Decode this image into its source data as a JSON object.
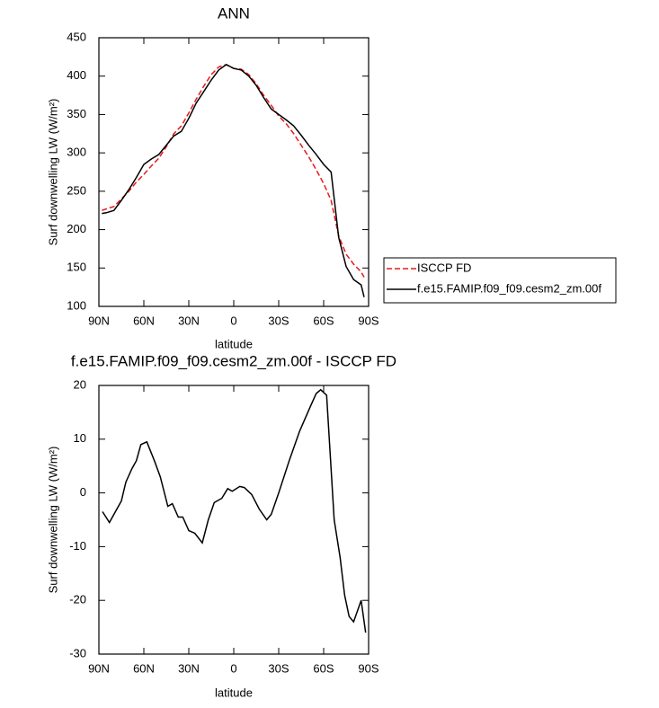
{
  "chart_data": [
    {
      "type": "line",
      "title": "ANN",
      "xlabel": "latitude",
      "ylabel": "Surf downwelling LW (W/m²)",
      "xlim": [
        90,
        -90
      ],
      "xticks": [
        {
          "value": 90,
          "label": "90N"
        },
        {
          "value": 60,
          "label": "60N"
        },
        {
          "value": 30,
          "label": "30N"
        },
        0,
        {
          "value": -30,
          "label": "30S"
        },
        {
          "value": -60,
          "label": "60S"
        },
        {
          "value": -90,
          "label": "90S"
        }
      ],
      "ylim": [
        100,
        450
      ],
      "yticks": [
        100,
        150,
        200,
        250,
        300,
        350,
        400,
        450
      ],
      "x": [
        88,
        85,
        80,
        75,
        70,
        65,
        60,
        55,
        50,
        45,
        40,
        35,
        30,
        25,
        20,
        15,
        10,
        5,
        0,
        -5,
        -10,
        -15,
        -20,
        -25,
        -30,
        -35,
        -40,
        -45,
        -50,
        -55,
        -60,
        -65,
        -70,
        -75,
        -80,
        -85,
        -87
      ],
      "series": [
        {
          "name": "ISCCP FD",
          "color": "#e8191b",
          "dash": true,
          "values": [
            225,
            227,
            230,
            240,
            250,
            262,
            272,
            283,
            293,
            308,
            325,
            335,
            352,
            370,
            387,
            402,
            412,
            415,
            410,
            409,
            402,
            390,
            375,
            362,
            348,
            338,
            325,
            310,
            295,
            278,
            260,
            238,
            192,
            168,
            155,
            145,
            138
          ]
        },
        {
          "name": "f.e15.FAMIP.f09_f09.cesm2_zm.00f",
          "color": "#000000",
          "dash": false,
          "values": [
            221,
            222,
            225,
            238,
            252,
            268,
            285,
            292,
            298,
            310,
            322,
            328,
            345,
            365,
            380,
            395,
            408,
            415,
            410,
            408,
            400,
            388,
            372,
            357,
            350,
            343,
            335,
            323,
            310,
            298,
            285,
            275,
            190,
            152,
            135,
            128,
            112
          ]
        }
      ],
      "legend": "right"
    },
    {
      "type": "line",
      "title": "f.e15.FAMIP.f09_f09.cesm2_zm.00f - ISCCP FD",
      "xlabel": "latitude",
      "ylabel": "Surf downwelling LW (W/m²)",
      "xlim": [
        90,
        -90
      ],
      "xticks": [
        {
          "value": 90,
          "label": "90N"
        },
        {
          "value": 60,
          "label": "60N"
        },
        {
          "value": 30,
          "label": "30N"
        },
        0,
        {
          "value": -30,
          "label": "30S"
        },
        {
          "value": -60,
          "label": "60S"
        },
        {
          "value": -90,
          "label": "90S"
        }
      ],
      "ylim": [
        -30,
        20
      ],
      "yticks": [
        -30,
        -20,
        -10,
        0,
        10,
        20
      ],
      "x": [
        87.6,
        83,
        80,
        75,
        72,
        68,
        65,
        62,
        58,
        53,
        49,
        44,
        41,
        37,
        34,
        30,
        26,
        21,
        17,
        13,
        8,
        4,
        1,
        -4,
        -7,
        -12,
        -17,
        -22,
        -25,
        -30,
        -37,
        -44,
        -51,
        -55,
        -58,
        -62,
        -67,
        -71,
        -74,
        -77,
        -80,
        -85,
        -88
      ],
      "series": [
        {
          "color": "#000000",
          "values": [
            -3.5,
            -5.5,
            -4,
            -1.5,
            2,
            4.5,
            6,
            9,
            9.5,
            6,
            3,
            -2.5,
            -2,
            -4.5,
            -4.5,
            -7,
            -7.5,
            -9.3,
            -5,
            -1.8,
            -1,
            0.8,
            0.3,
            1.2,
            1,
            -0.3,
            -3,
            -5,
            -4,
            0,
            6,
            11.5,
            16,
            18.5,
            19.2,
            18.2,
            -5,
            -12,
            -19,
            -23,
            -24,
            -20,
            -26
          ]
        }
      ]
    }
  ]
}
